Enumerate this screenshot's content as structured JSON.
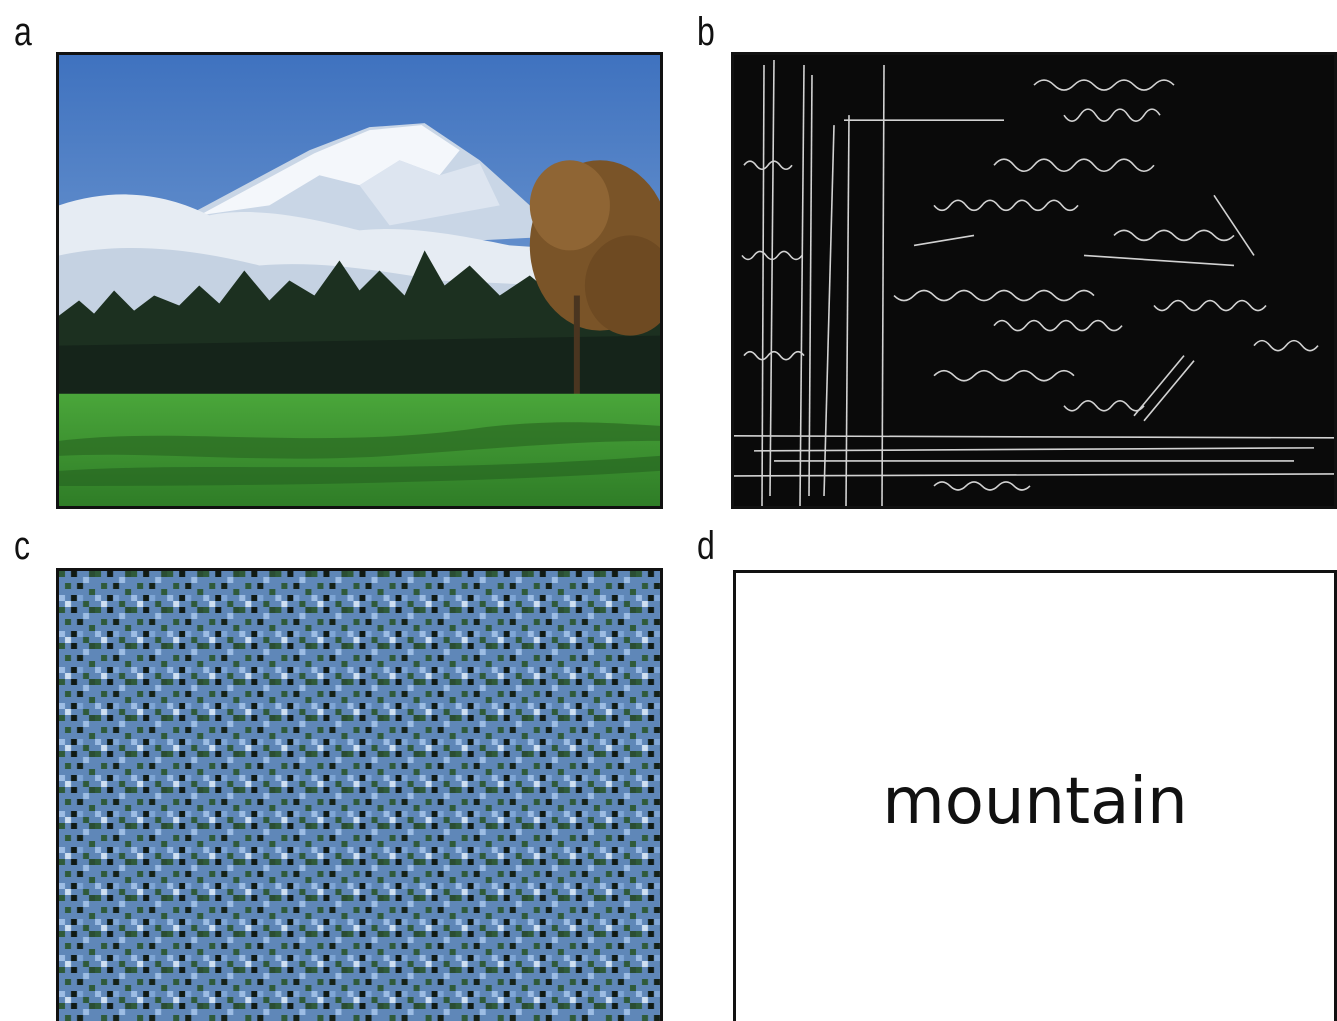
{
  "panels": {
    "a": {
      "letter": "a"
    },
    "b": {
      "letter": "b"
    },
    "c": {
      "letter": "c"
    },
    "d": {
      "letter": "d",
      "word": "mountain"
    }
  },
  "colors": {
    "sky": "#4f7fc4",
    "snow": "#f2f5fa",
    "cloud": "#dfe6ef",
    "forest": "#1e3320",
    "grass": "#3f9a33",
    "autumn_tree": "#8a5a2a",
    "edge_background": "#0a0a0a",
    "edge_lines": "#e8e8e8",
    "noise_blue": "#7fa6d6",
    "noise_green": "#2f5a3a",
    "noise_dark": "#101a14"
  }
}
